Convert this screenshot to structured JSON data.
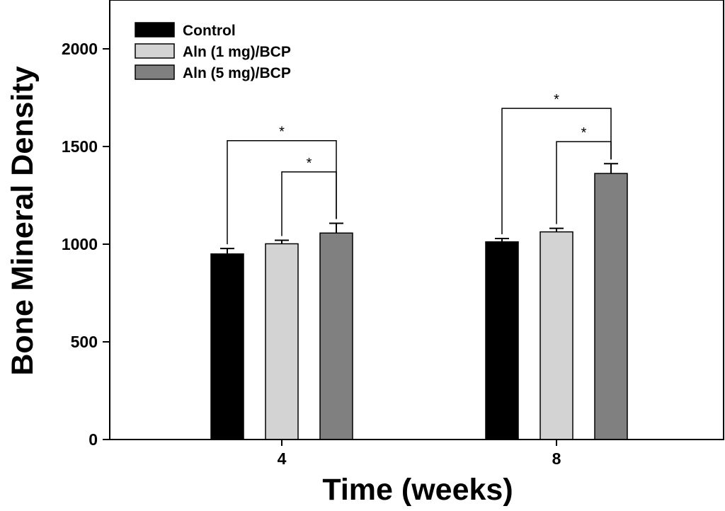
{
  "chart_data": {
    "type": "bar",
    "xlabel": "Time (weeks)",
    "ylabel": "Bone Mineral Density",
    "ylim": [
      0,
      2250
    ],
    "yticks": [
      0,
      500,
      1000,
      1500,
      2000
    ],
    "categories": [
      "4",
      "8"
    ],
    "series": [
      {
        "name": "Control",
        "color": "#000000",
        "values": [
          950,
          1012
        ],
        "errors": [
          28,
          17
        ]
      },
      {
        "name": "Aln (1 mg)/BCP",
        "color": "#d3d3d3",
        "values": [
          1002,
          1063
        ],
        "errors": [
          18,
          18
        ]
      },
      {
        "name": "Aln (5 mg)/BCP",
        "color": "#808080",
        "values": [
          1057,
          1362
        ],
        "errors": [
          50,
          50
        ]
      }
    ],
    "legend_position": "top-left",
    "significance": [
      {
        "category": 0,
        "from_series": 0,
        "to_series": 2,
        "label": "*",
        "level": 1530
      },
      {
        "category": 0,
        "from_series": 1,
        "to_series": 2,
        "label": "*",
        "level": 1370
      },
      {
        "category": 1,
        "from_series": 0,
        "to_series": 2,
        "label": "*",
        "level": 1695
      },
      {
        "category": 1,
        "from_series": 1,
        "to_series": 2,
        "label": "*",
        "level": 1525
      }
    ]
  }
}
